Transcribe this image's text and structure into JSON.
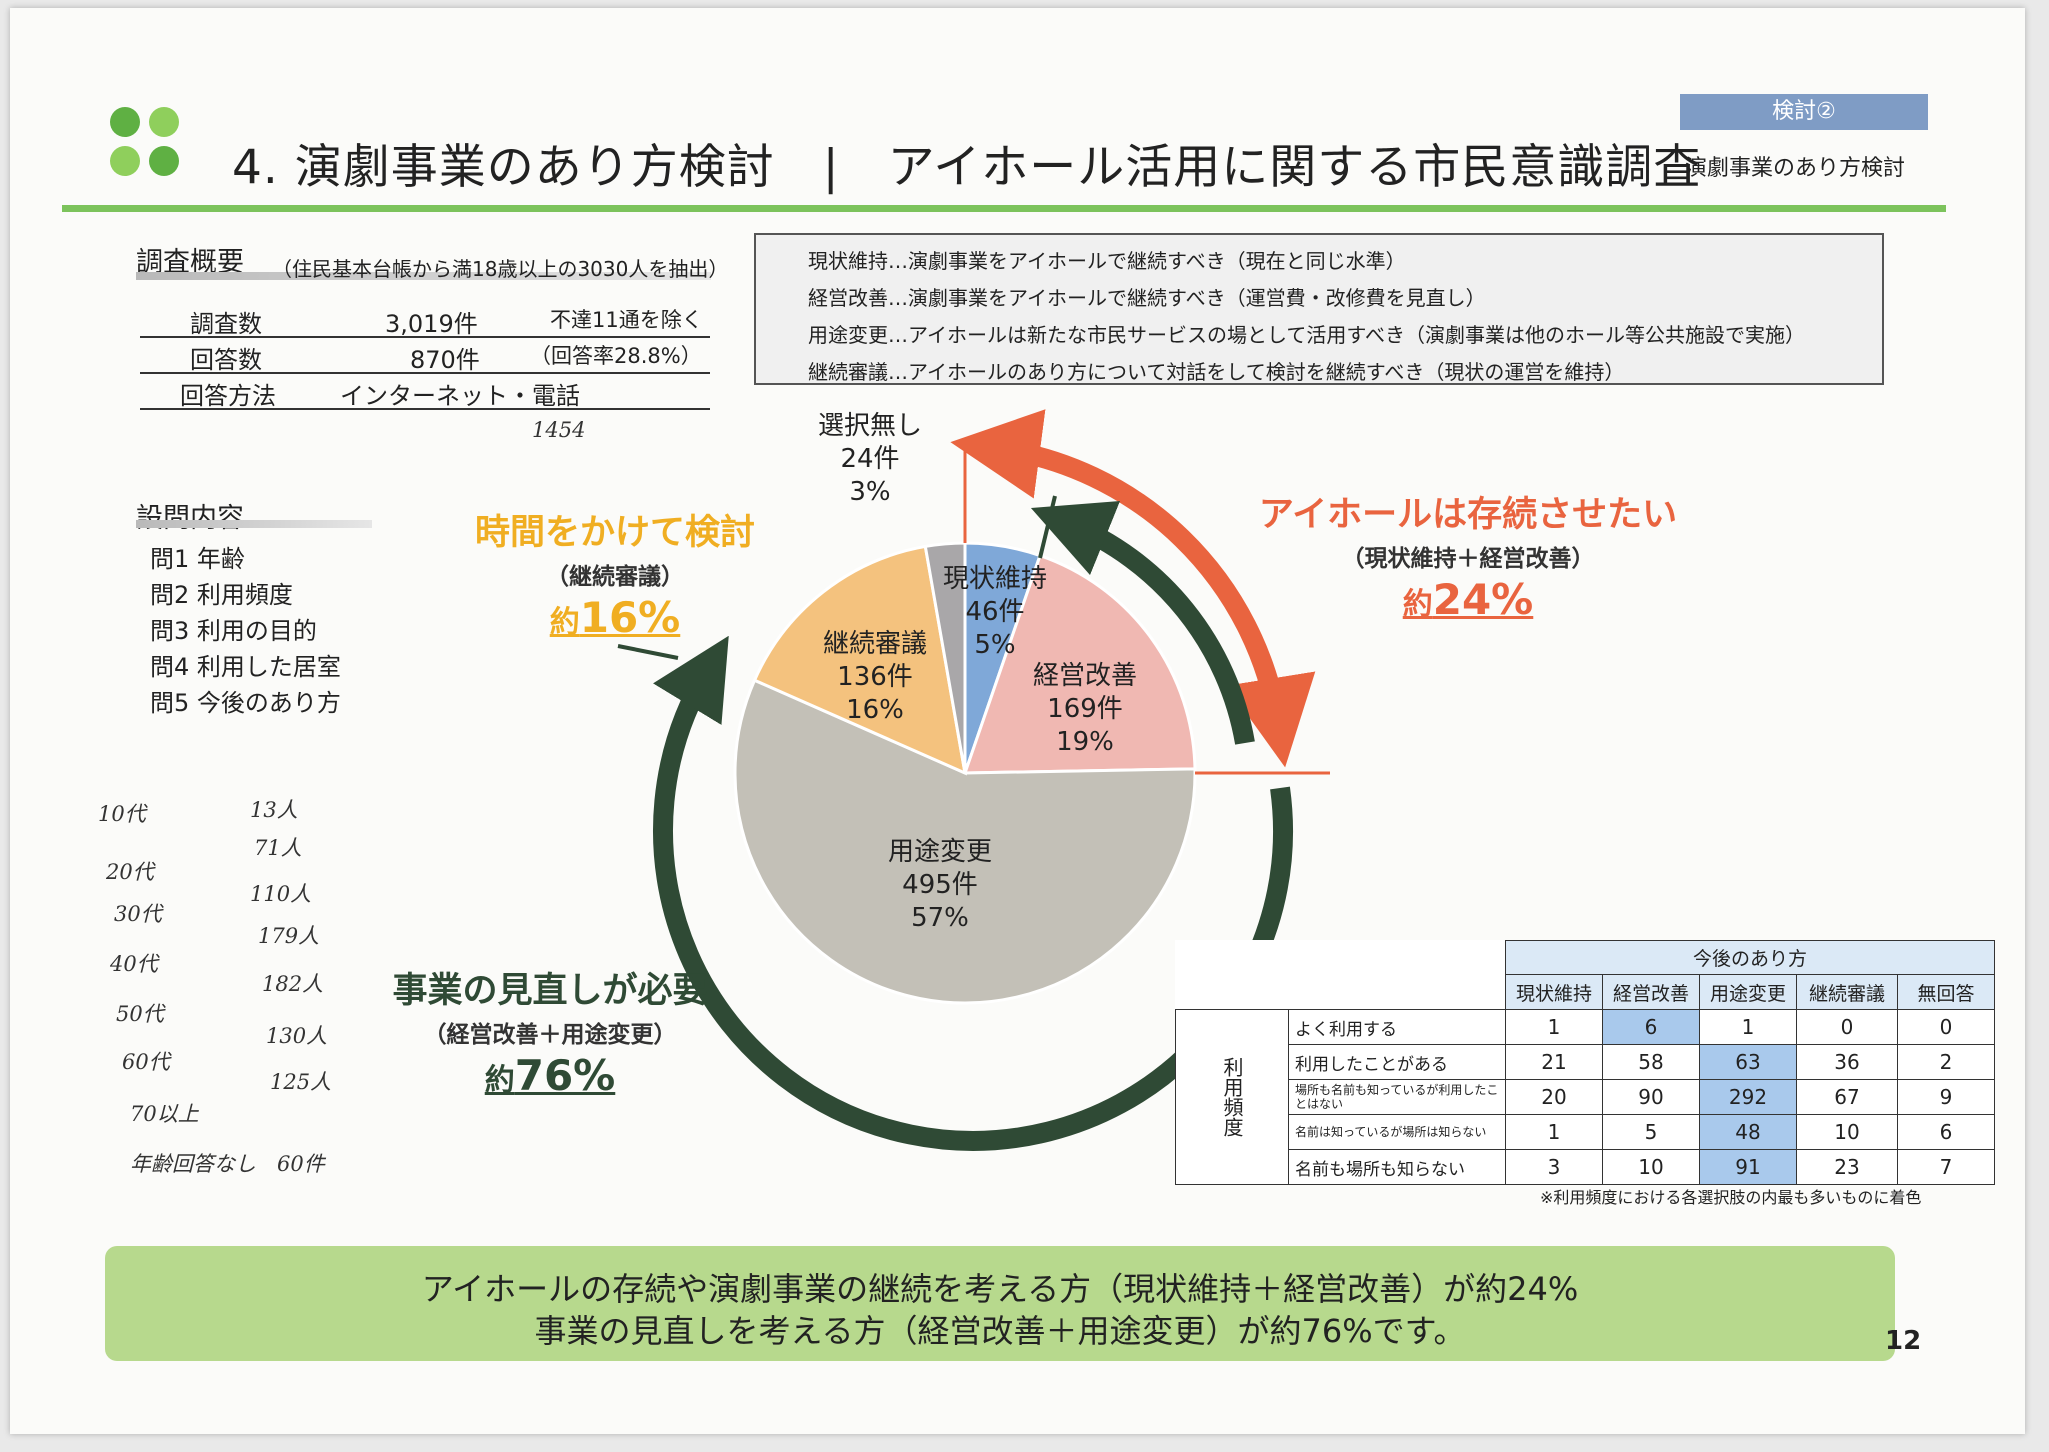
{
  "header": {
    "title": "4. 演劇事業のあり方検討　|　アイホール活用に関する市民意識調査",
    "tag_top": "検討②",
    "tag_bottom": "演劇事業のあり方検討"
  },
  "overview": {
    "heading": "調査概要",
    "note": "（住民基本台帳から満18歳以上の3030人を抽出）",
    "rows": [
      {
        "label": "調査数",
        "value": "3,019件",
        "note": "不達11通を除く"
      },
      {
        "label": "回答数",
        "value": "870件",
        "note": "（回答率28.8%）"
      },
      {
        "label": "回答方法",
        "value": "インターネット・電話",
        "note": ""
      }
    ]
  },
  "definitions": [
    "現状維持…演劇事業をアイホールで継続すべき（現在と同じ水準）",
    "経営改善…演劇事業をアイホールで継続すべき（運営費・改修費を見直し）",
    "用途変更…アイホールは新たな市民サービスの場として活用すべき（演劇事業は他のホール等公共施設で実施）",
    "継続審議…アイホールのあり方について対話をして検討を継続すべき（現状の運営を維持）"
  ],
  "questions": {
    "heading": "設問内容",
    "items": [
      "問1 年齢",
      "問2 利用頻度",
      "問3 利用の目的",
      "問4 利用した居室",
      "問5 今後のあり方"
    ]
  },
  "chart_data": {
    "type": "pie",
    "slices": [
      {
        "label": "現状維持",
        "count": "46件",
        "percent": "5%",
        "value": 46,
        "color": "#7fa8d8"
      },
      {
        "label": "経営改善",
        "count": "169件",
        "percent": "19%",
        "value": 169,
        "color": "#f0b8b2"
      },
      {
        "label": "用途変更",
        "count": "495件",
        "percent": "57%",
        "value": 495,
        "color": "#c3c0b7"
      },
      {
        "label": "継続審議",
        "count": "136件",
        "percent": "16%",
        "value": 136,
        "color": "#f4c27e"
      },
      {
        "label": "選択無し",
        "count": "24件",
        "percent": "3%",
        "value": 24,
        "color": "#a9a7a9"
      }
    ]
  },
  "annotations": {
    "continue": {
      "title": "アイホールは存続させたい",
      "sub": "（現状維持＋経営改善）",
      "prefix": "約",
      "pct": "24%",
      "color": "#e9643f"
    },
    "deliberate": {
      "title": "時間をかけて検討",
      "sub": "（継続審議）",
      "prefix": "約",
      "pct": "16%",
      "color": "#f0ae22"
    },
    "review": {
      "title": "事業の見直しが必要",
      "sub": "（経営改善＋用途変更）",
      "prefix": "約",
      "pct": "76%",
      "color": "#2f4a35"
    }
  },
  "handwritten": {
    "note_1454": "1454",
    "ages": [
      {
        "age": "10代",
        "count": "13人"
      },
      {
        "age": "20代",
        "count": "71人"
      },
      {
        "age": "30代",
        "count": "110人"
      },
      {
        "age": "40代",
        "count": "179人"
      },
      {
        "age": "50代",
        "count": "182人"
      },
      {
        "age": "60代",
        "count": "130人"
      },
      {
        "age": "70以上",
        "count": "125人"
      }
    ],
    "no_answer": "年齢回答なし　60件"
  },
  "table": {
    "title": "今後のあり方",
    "side_label": "利用頻度",
    "columns": [
      "現状維持",
      "経営改善",
      "用途変更",
      "継続審議",
      "無回答"
    ],
    "rows": [
      {
        "label": "よく利用する",
        "values": [
          "1",
          "6",
          "1",
          "0",
          "0"
        ],
        "highlight": [
          1
        ]
      },
      {
        "label": "利用したことがある",
        "values": [
          "21",
          "58",
          "63",
          "36",
          "2"
        ],
        "highlight": [
          2
        ]
      },
      {
        "label": "場所も名前も知っているが利用したことはない",
        "values": [
          "20",
          "90",
          "292",
          "67",
          "9"
        ],
        "highlight": [
          2
        ]
      },
      {
        "label": "名前は知っているが場所は知らない",
        "values": [
          "1",
          "5",
          "48",
          "10",
          "6"
        ],
        "highlight": [
          2
        ]
      },
      {
        "label": "名前も場所も知らない",
        "values": [
          "3",
          "10",
          "91",
          "23",
          "7"
        ],
        "highlight": [
          2
        ]
      }
    ],
    "note": "※利用頻度における各選択肢の内最も多いものに着色"
  },
  "summary": [
    "アイホールの存続や演劇事業の継続を考える方（現状維持＋経営改善）が約24%",
    "事業の見直しを考える方（経営改善＋用途変更）が約76%です。"
  ],
  "page_number": "12"
}
